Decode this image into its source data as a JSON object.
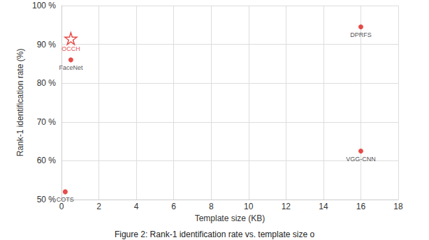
{
  "chart_data": {
    "type": "scatter",
    "caption": "Figure 2: Rank-1 identification rate vs. template size o",
    "x_label": "Template size (KB)",
    "y_label": "Rank-1 identification rate (%)",
    "xlim": [
      0,
      18
    ],
    "xticks": [
      0,
      2,
      4,
      6,
      8,
      10,
      12,
      14,
      16,
      18
    ],
    "ylim": [
      50,
      100
    ],
    "yticks": [
      {
        "value": 50,
        "label": "50 %"
      },
      {
        "value": 60,
        "label": "60 %"
      },
      {
        "value": 70,
        "label": "70 %"
      },
      {
        "value": 80,
        "label": "80 %"
      },
      {
        "value": 90,
        "label": "90 %"
      },
      {
        "value": 100,
        "label": "100 %"
      }
    ],
    "grid": true,
    "series": [
      {
        "marker": "star",
        "color": "#e0201b",
        "x": [
          0.5
        ],
        "values": [
          91.5
        ],
        "point_labels": [
          "OCCH"
        ]
      },
      {
        "marker": "circle",
        "color": "#e0201b",
        "x": [
          0.5,
          16,
          16,
          0.2
        ],
        "values": [
          86,
          94.5,
          62.5,
          52
        ],
        "point_labels": [
          "FaceNet",
          "DPRFS",
          "VGG-CNN",
          "COTS"
        ]
      }
    ]
  }
}
